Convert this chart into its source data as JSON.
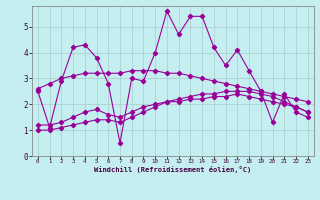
{
  "background_color": "#c5eef0",
  "grid_color": "#aacccc",
  "line_color": "#990099",
  "xlabel": "Windchill (Refroidissement éolien,°C)",
  "xlim": [
    -0.5,
    23.5
  ],
  "ylim": [
    0,
    5.8
  ],
  "xtick_vals": [
    0,
    1,
    2,
    3,
    4,
    5,
    6,
    7,
    8,
    9,
    10,
    11,
    12,
    13,
    14,
    15,
    16,
    17,
    18,
    19,
    20,
    21,
    22,
    23
  ],
  "ytick_vals": [
    0,
    1,
    2,
    3,
    4,
    5
  ],
  "line1_x": [
    0,
    1,
    2,
    3,
    4,
    5,
    6,
    7,
    8,
    9,
    10,
    11,
    12,
    13,
    14,
    15,
    16,
    17,
    18,
    19,
    20,
    21,
    22,
    23
  ],
  "line1_y": [
    2.5,
    1.1,
    2.9,
    4.2,
    4.3,
    3.8,
    2.8,
    0.5,
    3.0,
    2.9,
    4.0,
    5.6,
    4.7,
    5.4,
    5.4,
    4.2,
    3.5,
    4.1,
    3.3,
    2.5,
    1.3,
    2.4,
    1.7,
    1.5
  ],
  "line2_x": [
    0,
    1,
    2,
    3,
    4,
    5,
    6,
    7,
    8,
    9,
    10,
    11,
    12,
    13,
    14,
    15,
    16,
    17,
    18,
    19,
    20,
    21,
    22,
    23
  ],
  "line2_y": [
    1.2,
    1.2,
    1.3,
    1.5,
    1.7,
    1.8,
    1.6,
    1.5,
    1.7,
    1.9,
    2.0,
    2.1,
    2.1,
    2.2,
    2.2,
    2.3,
    2.3,
    2.4,
    2.3,
    2.2,
    2.1,
    2.0,
    1.9,
    1.7
  ],
  "line3_x": [
    0,
    1,
    2,
    3,
    4,
    5,
    6,
    7,
    8,
    9,
    10,
    11,
    12,
    13,
    14,
    15,
    16,
    17,
    18,
    19,
    20,
    21,
    22,
    23
  ],
  "line3_y": [
    2.6,
    2.8,
    3.0,
    3.1,
    3.2,
    3.2,
    3.2,
    3.2,
    3.3,
    3.3,
    3.3,
    3.2,
    3.2,
    3.1,
    3.0,
    2.9,
    2.8,
    2.7,
    2.6,
    2.5,
    2.4,
    2.3,
    2.2,
    2.1
  ],
  "line4_x": [
    0,
    1,
    2,
    3,
    4,
    5,
    6,
    7,
    8,
    9,
    10,
    11,
    12,
    13,
    14,
    15,
    16,
    17,
    18,
    19,
    20,
    21,
    22,
    23
  ],
  "line4_y": [
    1.0,
    1.0,
    1.1,
    1.2,
    1.3,
    1.4,
    1.4,
    1.3,
    1.5,
    1.7,
    1.9,
    2.1,
    2.2,
    2.3,
    2.4,
    2.4,
    2.5,
    2.5,
    2.5,
    2.4,
    2.3,
    2.1,
    1.9,
    1.7
  ]
}
